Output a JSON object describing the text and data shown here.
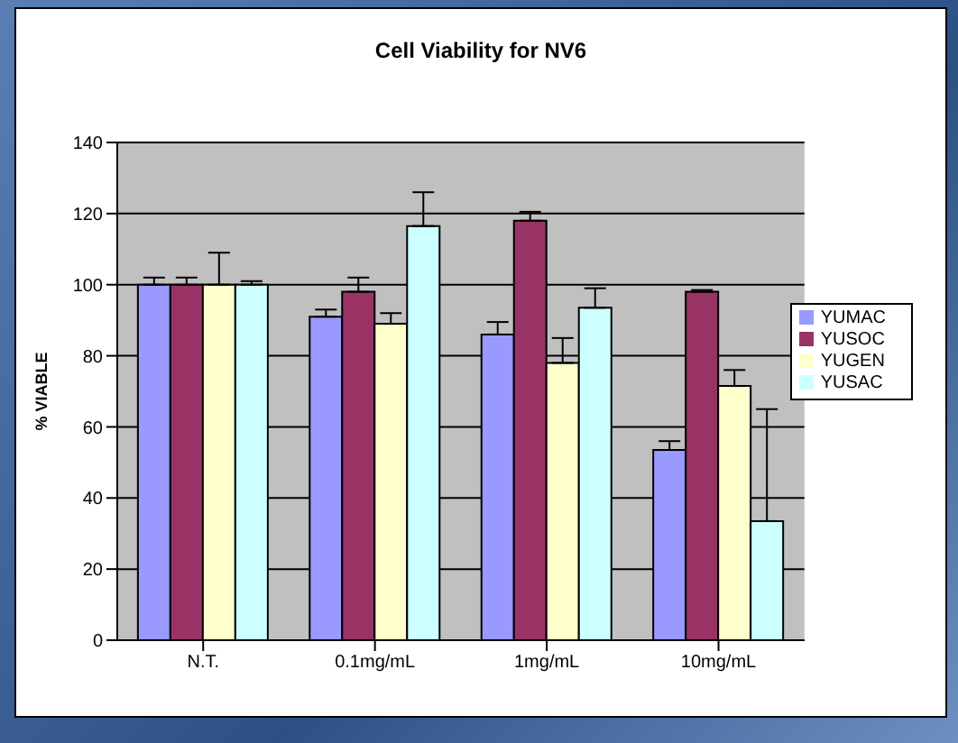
{
  "chart_data": {
    "type": "bar",
    "title": "Cell Viability for NV6",
    "ylabel": "% VIABLE",
    "categories": [
      "N.T.",
      "0.1mg/mL",
      "1mg/mL",
      "10mg/mL"
    ],
    "series": [
      {
        "name": "YUMAC",
        "color": "#9999ff",
        "values": [
          100,
          91,
          86,
          53.5
        ],
        "errors": [
          [
            100,
            102
          ],
          [
            91,
            93
          ],
          [
            86,
            89.5
          ],
          [
            53.5,
            56
          ]
        ]
      },
      {
        "name": "YUSOC",
        "color": "#993366",
        "values": [
          100,
          98,
          118,
          98
        ],
        "errors": [
          [
            100,
            102
          ],
          [
            98,
            102
          ],
          [
            118,
            120.5
          ],
          [
            98,
            98.5
          ]
        ]
      },
      {
        "name": "YUGEN",
        "color": "#ffffcc",
        "values": [
          100,
          89,
          78,
          71.5
        ],
        "errors": [
          [
            100,
            109
          ],
          [
            89,
            92
          ],
          [
            78,
            85
          ],
          [
            71.5,
            76
          ]
        ]
      },
      {
        "name": "YUSAC",
        "color": "#ccffff",
        "values": [
          100,
          116.5,
          93.5,
          33.5
        ],
        "errors": [
          [
            100,
            101
          ],
          [
            116.5,
            126
          ],
          [
            93.5,
            99
          ],
          [
            33.5,
            65
          ]
        ]
      }
    ],
    "ylim": [
      0,
      140
    ],
    "yticks": [
      0,
      20,
      40,
      60,
      80,
      100,
      120,
      140
    ],
    "grid": "y",
    "legend": "right"
  }
}
